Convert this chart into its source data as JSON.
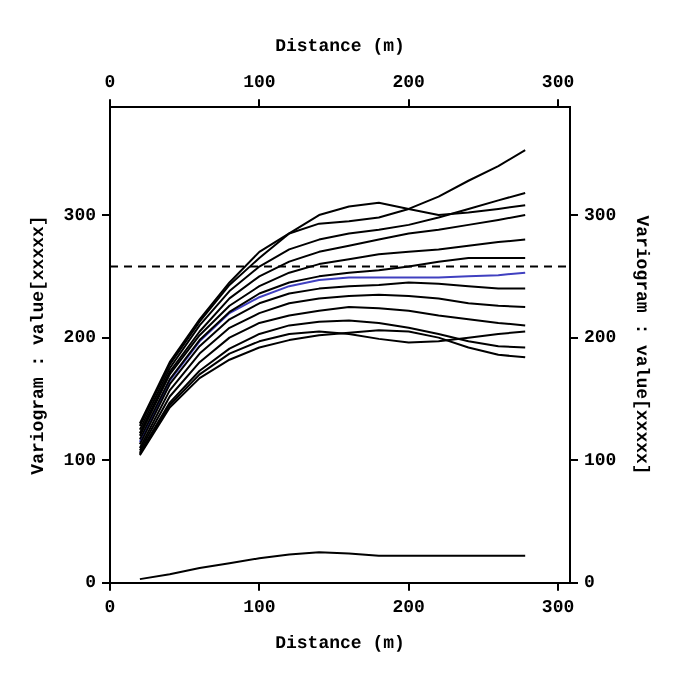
{
  "chart_data": {
    "type": "line",
    "xlabel": "Distance (m)",
    "x2label": "Distance (m)",
    "ylabel": "Variogram : value[xxxxx]",
    "y2label": "Variogram : value[xxxxx]",
    "x": [
      20,
      40,
      60,
      80,
      100,
      120,
      140,
      160,
      180,
      200,
      220,
      240,
      260,
      278
    ],
    "xlim": [
      0,
      308
    ],
    "xticks": [
      0,
      100,
      200,
      300
    ],
    "x2lim": [
      0,
      308
    ],
    "x2ticks": [
      0,
      100,
      200,
      300
    ],
    "ylim": [
      0,
      388
    ],
    "yticks": [
      0,
      100,
      200,
      300
    ],
    "y2lim": [
      0,
      388
    ],
    "y2ticks": [
      0,
      100,
      200,
      300
    ],
    "grid": false,
    "legend": false,
    "marker": "none",
    "line_style": "solid",
    "series": [
      {
        "color": "#000000",
        "values": [
          130,
          180,
          215,
          245,
          270,
          285,
          293,
          295,
          298,
          305,
          315,
          328,
          340,
          353
        ]
      },
      {
        "color": "#000000",
        "values": [
          128,
          178,
          213,
          243,
          265,
          285,
          300,
          307,
          310,
          305,
          300,
          302,
          305,
          308
        ]
      },
      {
        "color": "#000000",
        "values": [
          125,
          175,
          210,
          238,
          258,
          272,
          280,
          285,
          288,
          292,
          298,
          305,
          312,
          318
        ]
      },
      {
        "color": "#000000",
        "values": [
          122,
          172,
          205,
          232,
          250,
          262,
          270,
          275,
          280,
          285,
          288,
          292,
          296,
          300
        ]
      },
      {
        "color": "#000000",
        "values": [
          120,
          170,
          202,
          226,
          242,
          253,
          260,
          264,
          268,
          270,
          272,
          275,
          278,
          280
        ]
      },
      {
        "color": "#000000",
        "values": [
          117,
          166,
          198,
          221,
          236,
          245,
          250,
          253,
          255,
          258,
          262,
          265,
          265,
          265
        ]
      },
      {
        "color": "#000000",
        "values": [
          113,
          162,
          193,
          215,
          228,
          236,
          240,
          242,
          243,
          245,
          244,
          242,
          240,
          240
        ]
      },
      {
        "color": "#000000",
        "values": [
          110,
          157,
          187,
          208,
          220,
          228,
          232,
          234,
          235,
          234,
          232,
          228,
          226,
          225
        ]
      },
      {
        "color": "#000000",
        "values": [
          108,
          152,
          180,
          200,
          212,
          218,
          222,
          225,
          224,
          222,
          218,
          215,
          212,
          210
        ]
      },
      {
        "color": "#000000",
        "values": [
          106,
          147,
          173,
          191,
          203,
          210,
          213,
          214,
          212,
          208,
          203,
          197,
          193,
          192
        ]
      },
      {
        "color": "#000000",
        "values": [
          105,
          145,
          170,
          187,
          197,
          203,
          205,
          203,
          199,
          196,
          197,
          200,
          203,
          205
        ]
      },
      {
        "color": "#000000",
        "values": [
          104,
          143,
          167,
          182,
          192,
          198,
          202,
          204,
          206,
          205,
          200,
          192,
          186,
          184
        ]
      },
      {
        "color": "#000000",
        "values": [
          3,
          7,
          12,
          16,
          20,
          23,
          25,
          24,
          22,
          22,
          22,
          22,
          22,
          22
        ]
      },
      {
        "color": "#4040c0",
        "values": [
          115,
          165,
          197,
          220,
          233,
          242,
          247,
          249,
          249,
          249,
          249,
          250,
          251,
          253
        ]
      }
    ],
    "ref_lines": [
      {
        "axis": "y",
        "value": 258,
        "color": "#000000",
        "line_style": "dashed"
      }
    ]
  }
}
